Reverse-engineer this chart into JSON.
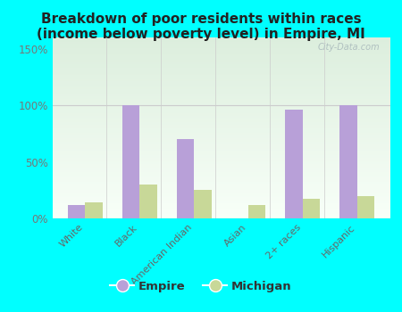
{
  "title": "Breakdown of poor residents within races\n(income below poverty level) in Empire, MI",
  "categories": [
    "White",
    "Black",
    "American Indian",
    "Asian",
    "2+ races",
    "Hispanic"
  ],
  "empire_values": [
    12,
    100,
    70,
    0,
    96,
    100
  ],
  "michigan_values": [
    14,
    30,
    25,
    12,
    17,
    20
  ],
  "empire_color": "#b8a0d8",
  "michigan_color": "#c8d898",
  "background_color": "#00ffff",
  "plot_bg_top": "#dceedd",
  "plot_bg_bottom": "#f8fff8",
  "yticks": [
    0,
    50,
    100,
    150
  ],
  "ylabels": [
    "0%",
    "50%",
    "100%",
    "150%"
  ],
  "ylim": [
    0,
    160
  ],
  "bar_width": 0.32,
  "title_fontsize": 11,
  "legend_empire": "Empire",
  "legend_michigan": "Michigan",
  "watermark": "City-Data.com"
}
